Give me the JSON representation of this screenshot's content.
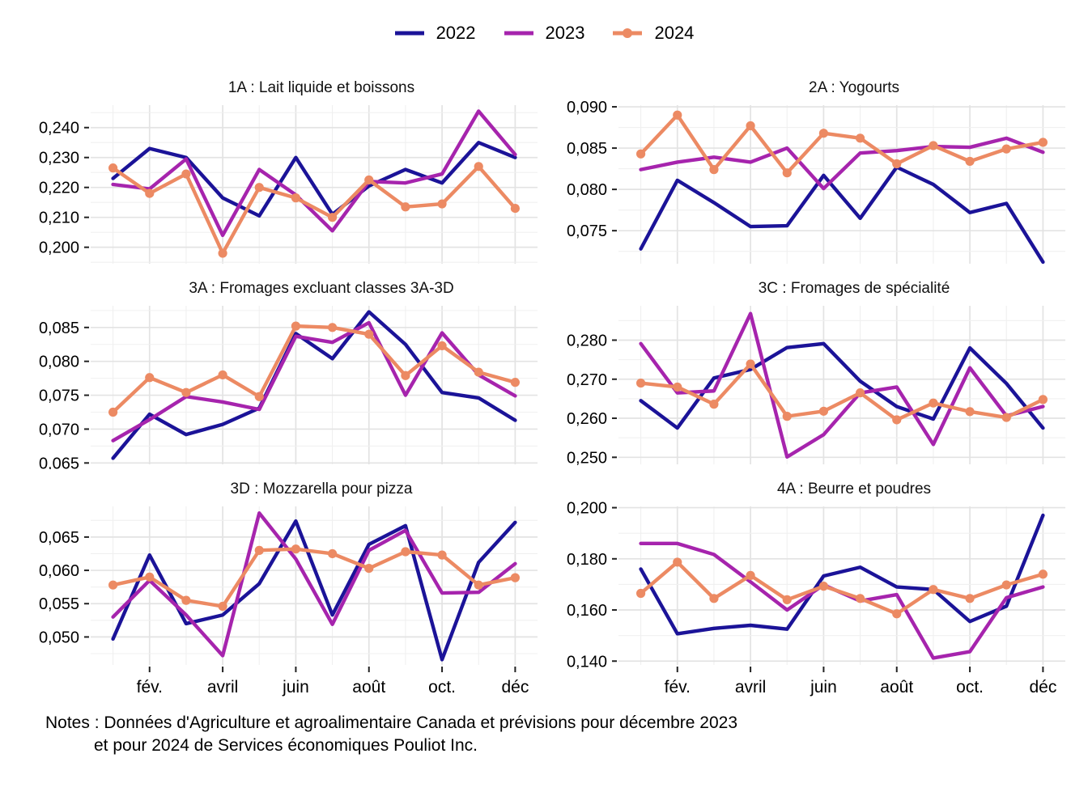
{
  "legend": {
    "items": [
      {
        "label": "2022",
        "color": "#1b1398",
        "dot": false
      },
      {
        "label": "2023",
        "color": "#a624ad",
        "dot": false
      },
      {
        "label": "2024",
        "color": "#ec8a63",
        "dot": true
      }
    ]
  },
  "months": {
    "count": 12,
    "tick_positions": [
      2,
      4,
      6,
      8,
      10,
      12
    ],
    "tick_labels": [
      "fév.",
      "avril",
      "juin",
      "août",
      "oct.",
      "déc"
    ]
  },
  "notes": {
    "line1": "Notes : Données d'Agriculture et agroalimentaire Canada et prévisions pour décembre 2023",
    "line2": "et pour 2024 de Services économiques Pouliot Inc."
  },
  "chart_data": [
    {
      "type": "line",
      "title": "1A : Lait liquide et boissons",
      "ylim": [
        0.1945,
        0.2475
      ],
      "yticks": [
        0.2,
        0.21,
        0.22,
        0.23,
        0.24
      ],
      "decimals": 3,
      "series": [
        {
          "name": "2022",
          "values": [
            0.223,
            0.233,
            0.23,
            0.2165,
            0.2105,
            0.23,
            0.211,
            0.2205,
            0.226,
            0.2215,
            0.235,
            0.23
          ]
        },
        {
          "name": "2023",
          "values": [
            0.221,
            0.2195,
            0.2295,
            0.204,
            0.226,
            0.2175,
            0.2055,
            0.222,
            0.2215,
            0.2245,
            0.2455,
            0.231
          ]
        },
        {
          "name": "2024",
          "values": [
            0.2265,
            0.218,
            0.2245,
            0.198,
            0.22,
            0.2165,
            0.21,
            0.2225,
            0.2135,
            0.2145,
            0.227,
            0.213
          ]
        }
      ]
    },
    {
      "type": "line",
      "title": "2A : Yogourts",
      "ylim": [
        0.071,
        0.0902
      ],
      "yticks": [
        0.075,
        0.08,
        0.085,
        0.09
      ],
      "decimals": 3,
      "series": [
        {
          "name": "2022",
          "values": [
            0.0728,
            0.0811,
            0.0784,
            0.0755,
            0.0756,
            0.0817,
            0.0765,
            0.0827,
            0.0806,
            0.0772,
            0.0783,
            0.0712
          ]
        },
        {
          "name": "2023",
          "values": [
            0.0824,
            0.0833,
            0.0839,
            0.0833,
            0.085,
            0.0801,
            0.0844,
            0.0847,
            0.0852,
            0.0851,
            0.0862,
            0.0845
          ]
        },
        {
          "name": "2024",
          "values": [
            0.0843,
            0.089,
            0.0824,
            0.0877,
            0.082,
            0.0868,
            0.0862,
            0.0831,
            0.0853,
            0.0834,
            0.0849,
            0.0857
          ]
        }
      ]
    },
    {
      "type": "line",
      "title": "3A : Fromages excluant classes 3A-3D",
      "ylim": [
        0.0648,
        0.0882
      ],
      "yticks": [
        0.065,
        0.07,
        0.075,
        0.08,
        0.085
      ],
      "decimals": 3,
      "series": [
        {
          "name": "2022",
          "values": [
            0.0657,
            0.0722,
            0.0692,
            0.0707,
            0.0731,
            0.0841,
            0.0804,
            0.0873,
            0.0825,
            0.0754,
            0.0746,
            0.0713
          ]
        },
        {
          "name": "2023",
          "values": [
            0.0683,
            0.0714,
            0.0748,
            0.074,
            0.0729,
            0.0837,
            0.0828,
            0.0857,
            0.075,
            0.0842,
            0.078,
            0.0749
          ]
        },
        {
          "name": "2024",
          "values": [
            0.0725,
            0.0776,
            0.0754,
            0.078,
            0.0748,
            0.0852,
            0.085,
            0.084,
            0.0779,
            0.0823,
            0.0784,
            0.0769
          ]
        }
      ]
    },
    {
      "type": "line",
      "title": "3C : Fromages de spécialité",
      "ylim": [
        0.2482,
        0.2888
      ],
      "yticks": [
        0.25,
        0.26,
        0.27,
        0.28
      ],
      "decimals": 3,
      "series": [
        {
          "name": "2022",
          "values": [
            0.2645,
            0.2575,
            0.2703,
            0.2725,
            0.2781,
            0.2791,
            0.2695,
            0.263,
            0.2598,
            0.278,
            0.2689,
            0.2575
          ]
        },
        {
          "name": "2023",
          "values": [
            0.2791,
            0.2665,
            0.267,
            0.2868,
            0.2501,
            0.2558,
            0.2665,
            0.268,
            0.2533,
            0.2729,
            0.2606,
            0.263
          ]
        },
        {
          "name": "2024",
          "values": [
            0.269,
            0.268,
            0.2636,
            0.2739,
            0.2605,
            0.2618,
            0.2665,
            0.2596,
            0.2639,
            0.2617,
            0.2602,
            0.2648
          ]
        }
      ]
    },
    {
      "type": "line",
      "title": "3D : Mozzarella pour pizza",
      "ylim": [
        0.0458,
        0.0696
      ],
      "yticks": [
        0.05,
        0.055,
        0.06,
        0.065
      ],
      "decimals": 3,
      "series": [
        {
          "name": "2022",
          "values": [
            0.0497,
            0.0623,
            0.052,
            0.0533,
            0.058,
            0.0674,
            0.0533,
            0.0639,
            0.0667,
            0.0466,
            0.0612,
            0.0672
          ]
        },
        {
          "name": "2023",
          "values": [
            0.053,
            0.0585,
            0.0533,
            0.0472,
            0.0686,
            0.0617,
            0.0519,
            0.063,
            0.066,
            0.0566,
            0.0567,
            0.061
          ]
        },
        {
          "name": "2024",
          "values": [
            0.0578,
            0.059,
            0.0555,
            0.0546,
            0.063,
            0.0632,
            0.0625,
            0.0603,
            0.0628,
            0.0623,
            0.0578,
            0.0589
          ]
        }
      ]
    },
    {
      "type": "line",
      "title": "4A : Beurre et poudres",
      "ylim": [
        0.1385,
        0.2005
      ],
      "yticks": [
        0.14,
        0.16,
        0.18,
        0.2
      ],
      "decimals": 3,
      "series": [
        {
          "name": "2022",
          "values": [
            0.176,
            0.1507,
            0.1528,
            0.154,
            0.1525,
            0.1733,
            0.1767,
            0.169,
            0.168,
            0.1555,
            0.1615,
            0.197
          ]
        },
        {
          "name": "2023",
          "values": [
            0.186,
            0.186,
            0.1817,
            0.171,
            0.16,
            0.1698,
            0.1635,
            0.166,
            0.1412,
            0.1437,
            0.1648,
            0.169
          ]
        },
        {
          "name": "2024",
          "values": [
            0.1665,
            0.1787,
            0.1645,
            0.1735,
            0.164,
            0.1693,
            0.1645,
            0.1585,
            0.168,
            0.1645,
            0.1698,
            0.174
          ]
        }
      ]
    }
  ]
}
